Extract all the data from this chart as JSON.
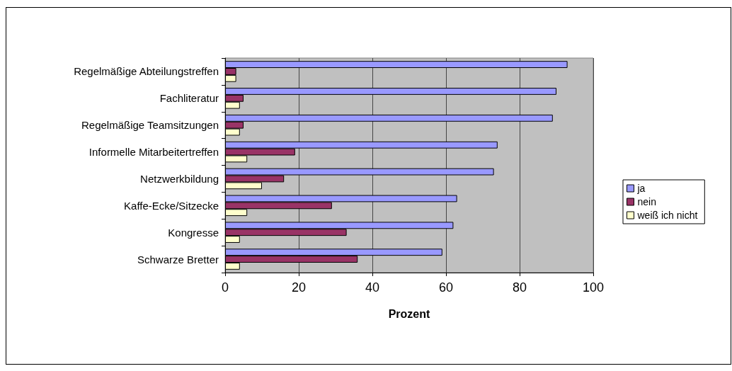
{
  "chart_data": {
    "type": "bar",
    "orientation": "horizontal",
    "categories": [
      "Regelmäßige Abteilungstreffen",
      "Fachliteratur",
      "Regelmäßige Teamsitzungen",
      "Informelle Mitarbeitertreffen",
      "Netzwerkbildung",
      "Kaffe-Ecke/Sitzecke",
      "Kongresse",
      "Schwarze Bretter"
    ],
    "series": [
      {
        "name": "ja",
        "color": "#9999ff",
        "values": [
          93,
          90,
          89,
          74,
          73,
          63,
          62,
          59
        ]
      },
      {
        "name": "nein",
        "color": "#993366",
        "values": [
          3,
          5,
          5,
          19,
          16,
          29,
          33,
          36
        ]
      },
      {
        "name": "weiß ich nicht",
        "color": "#ffffcc",
        "values": [
          3,
          4,
          4,
          6,
          10,
          6,
          4,
          4
        ]
      }
    ],
    "xlabel": "Prozent",
    "xlim": [
      0,
      100
    ],
    "xticks": [
      0,
      20,
      40,
      60,
      80,
      100
    ],
    "grid": "x",
    "legend": "right"
  }
}
